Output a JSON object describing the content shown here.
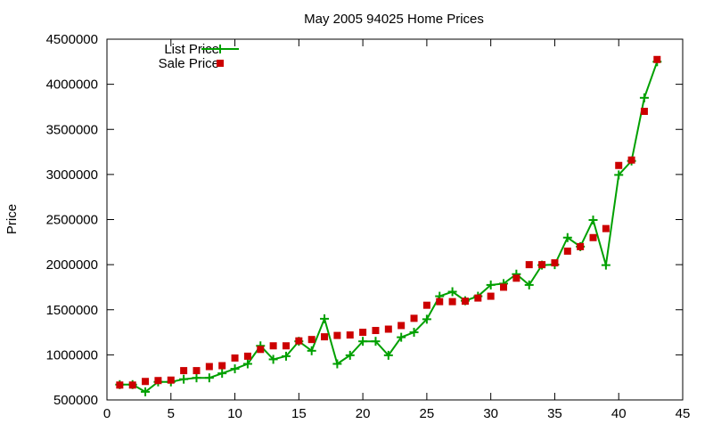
{
  "chart_data": {
    "type": "line",
    "title": "May 2005 94025 Home Prices",
    "xlabel": "",
    "ylabel": "Price",
    "xlim": [
      0,
      45
    ],
    "ylim": [
      500000,
      4500000
    ],
    "xticks": [
      0,
      5,
      10,
      15,
      20,
      25,
      30,
      35,
      40,
      45
    ],
    "yticks": [
      500000,
      1000000,
      1500000,
      2000000,
      2500000,
      3000000,
      3500000,
      4000000,
      4500000
    ],
    "grid": false,
    "legend_position": "top-left",
    "series": [
      {
        "name": "List Price",
        "style": "linespoints",
        "marker": "plus",
        "color": "#00a000",
        "x": [
          1,
          2,
          3,
          4,
          5,
          6,
          7,
          8,
          9,
          10,
          11,
          12,
          13,
          14,
          15,
          16,
          17,
          18,
          19,
          20,
          21,
          22,
          23,
          24,
          25,
          26,
          27,
          28,
          29,
          30,
          31,
          32,
          33,
          34,
          35,
          36,
          37,
          38,
          39,
          40,
          41,
          42,
          43
        ],
        "values": [
          670000,
          670000,
          590000,
          700000,
          700000,
          730000,
          745000,
          745000,
          795000,
          845000,
          900000,
          1100000,
          950000,
          985000,
          1150000,
          1045000,
          1400000,
          900000,
          995000,
          1150000,
          1150000,
          995000,
          1195000,
          1250000,
          1395000,
          1650000,
          1700000,
          1600000,
          1650000,
          1775000,
          1790000,
          1895000,
          1775000,
          1995000,
          2000000,
          2300000,
          2200000,
          2495000,
          1995000,
          2995000,
          3150000,
          3850000,
          4250000
        ]
      },
      {
        "name": "Sale Price",
        "style": "points",
        "marker": "square",
        "color": "#cc0000",
        "x": [
          1,
          2,
          3,
          4,
          5,
          6,
          7,
          8,
          9,
          10,
          11,
          12,
          13,
          14,
          15,
          16,
          17,
          18,
          19,
          20,
          21,
          22,
          23,
          24,
          25,
          26,
          27,
          28,
          29,
          30,
          31,
          32,
          33,
          34,
          35,
          36,
          37,
          38,
          39,
          40,
          41,
          42,
          43
        ],
        "values": [
          665000,
          665000,
          705000,
          715000,
          720000,
          825000,
          825000,
          870000,
          880000,
          965000,
          985000,
          1060000,
          1100000,
          1100000,
          1155000,
          1170000,
          1200000,
          1215000,
          1220000,
          1250000,
          1270000,
          1285000,
          1325000,
          1405000,
          1550000,
          1590000,
          1590000,
          1595000,
          1630000,
          1650000,
          1750000,
          1850000,
          2000000,
          2000000,
          2020000,
          2150000,
          2200000,
          2300000,
          2400000,
          3100000,
          3160000,
          3700000,
          4275000
        ]
      }
    ]
  }
}
